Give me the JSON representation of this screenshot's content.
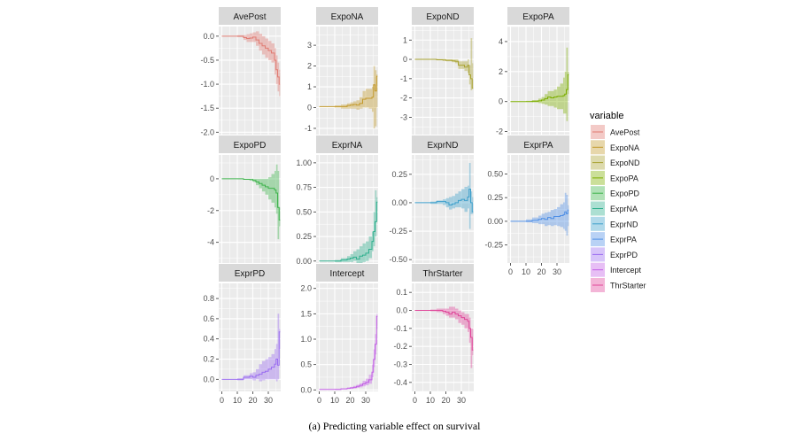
{
  "chart_data": {
    "type": "line",
    "subtype": "faceted step lines with confidence ribbons",
    "caption": "(a) Predicting variable effect on survival",
    "xlabel": "",
    "ylabel": "",
    "x_ticks": [
      0,
      10,
      20,
      30
    ],
    "xlim": [
      -2,
      38
    ],
    "grid": true,
    "legend": {
      "title": "variable",
      "placement": "right",
      "entries": [
        "AvePost",
        "ExpoNA",
        "ExpoND",
        "ExpoPA",
        "ExpoPD",
        "ExprNA",
        "ExprND",
        "ExprPA",
        "ExprPD",
        "Intercept",
        "ThrStarter"
      ]
    },
    "panels": [
      {
        "name": "AvePost",
        "color": "#E07B72",
        "ylim": [
          -2.05,
          0.2
        ],
        "yticks": [
          0.0,
          -0.5,
          -1.0,
          -1.5,
          -2.0
        ],
        "ytick_labels": [
          "0.0",
          "-0.5",
          "-1.0",
          "-1.5",
          "-2.0"
        ],
        "x": [
          0,
          10,
          14,
          16,
          18,
          20,
          22,
          24,
          26,
          28,
          30,
          32,
          34,
          35,
          36,
          37
        ],
        "y": [
          0,
          0,
          -0.03,
          -0.05,
          -0.04,
          -0.02,
          -0.08,
          -0.15,
          -0.2,
          -0.25,
          -0.3,
          -0.35,
          -0.5,
          -0.7,
          -0.85,
          -1.0
        ],
        "lo": [
          0,
          -0.02,
          -0.08,
          -0.12,
          -0.12,
          -0.12,
          -0.2,
          -0.3,
          -0.38,
          -0.45,
          -0.5,
          -0.55,
          -0.8,
          -1.0,
          -1.15,
          -1.25
        ],
        "hi": [
          0,
          0.02,
          0.02,
          0.04,
          0.06,
          0.08,
          0.1,
          0.05,
          0.0,
          -0.05,
          -0.1,
          -0.15,
          -0.25,
          -0.4,
          -0.55,
          -0.7
        ]
      },
      {
        "name": "ExpoNA",
        "color": "#C49A2C",
        "ylim": [
          -1.3,
          3.9
        ],
        "yticks": [
          3,
          2,
          1,
          0,
          -1
        ],
        "ytick_labels": [
          "3",
          "2",
          "1",
          "0",
          "-1"
        ],
        "x": [
          0,
          10,
          14,
          18,
          20,
          22,
          24,
          26,
          28,
          30,
          32,
          34,
          35,
          36,
          37
        ],
        "y": [
          0.05,
          0.05,
          0.05,
          0.1,
          0.12,
          0.15,
          0.12,
          0.2,
          0.4,
          0.45,
          0.45,
          0.5,
          1.1,
          0.8,
          1.5
        ],
        "lo": [
          0.05,
          0.0,
          -0.05,
          -0.05,
          -0.05,
          -0.05,
          -0.1,
          -0.05,
          0.0,
          0.0,
          -0.05,
          -0.2,
          -1.0,
          -0.9,
          0.0
        ],
        "hi": [
          0.05,
          0.1,
          0.15,
          0.2,
          0.25,
          0.3,
          0.35,
          0.5,
          0.8,
          0.9,
          0.9,
          1.0,
          2.0,
          1.8,
          1.6
        ]
      },
      {
        "name": "ExpoND",
        "color": "#A9A332",
        "ylim": [
          -3.9,
          1.7
        ],
        "yticks": [
          1,
          0,
          -1,
          -2,
          -3
        ],
        "ytick_labels": [
          "1",
          "0",
          "-1",
          "-2",
          "-3"
        ],
        "x": [
          0,
          10,
          14,
          18,
          20,
          22,
          24,
          26,
          28,
          30,
          32,
          34,
          35,
          36,
          37
        ],
        "y": [
          0,
          0,
          -0.02,
          -0.03,
          -0.05,
          -0.05,
          -0.08,
          -0.1,
          -0.3,
          -0.3,
          -0.4,
          -0.3,
          -0.8,
          -1.0,
          -1.5
        ],
        "lo": [
          0,
          -0.02,
          -0.05,
          -0.08,
          -0.1,
          -0.1,
          -0.15,
          -0.2,
          -0.5,
          -0.5,
          -0.6,
          -0.7,
          -1.3,
          -1.6,
          -1.5
        ],
        "hi": [
          0,
          0.02,
          0.02,
          0.02,
          0.0,
          0.0,
          0.0,
          0.0,
          -0.1,
          -0.1,
          -0.1,
          0.0,
          -0.3,
          1.1,
          -0.2
        ]
      },
      {
        "name": "ExpoPA",
        "color": "#7CAE00",
        "ylim": [
          -2.2,
          5.0
        ],
        "yticks": [
          4,
          2,
          0,
          -2
        ],
        "ytick_labels": [
          "4",
          "2",
          "0",
          "-2"
        ],
        "x": [
          0,
          10,
          14,
          18,
          20,
          22,
          24,
          26,
          28,
          30,
          32,
          34,
          35,
          36,
          37
        ],
        "y": [
          0,
          0,
          0.02,
          0.05,
          0.1,
          0.2,
          0.3,
          0.25,
          0.3,
          0.35,
          0.35,
          0.4,
          0.5,
          0.8,
          1.8
        ],
        "lo": [
          0,
          -0.02,
          -0.05,
          -0.1,
          -0.15,
          -0.2,
          -0.3,
          -0.3,
          -0.4,
          -0.5,
          -0.5,
          -0.8,
          -0.8,
          -1.3,
          0.5
        ],
        "hi": [
          0,
          0.05,
          0.1,
          0.2,
          0.3,
          0.5,
          0.7,
          0.7,
          0.8,
          1.0,
          1.2,
          1.6,
          2.0,
          3.6,
          2.0
        ]
      },
      {
        "name": "ExpoPD",
        "color": "#3DB34B",
        "ylim": [
          -5.3,
          1.5
        ],
        "yticks": [
          0,
          -2,
          -4
        ],
        "ytick_labels": [
          "0",
          "-2",
          "-4"
        ],
        "x": [
          0,
          10,
          14,
          18,
          20,
          22,
          24,
          26,
          28,
          30,
          32,
          34,
          35,
          36,
          37
        ],
        "y": [
          0,
          0,
          -0.03,
          -0.05,
          -0.1,
          -0.2,
          -0.3,
          -0.4,
          -0.5,
          -0.6,
          -0.6,
          -0.7,
          -0.9,
          -1.8,
          -2.6
        ],
        "lo": [
          0,
          -0.02,
          -0.05,
          -0.1,
          -0.2,
          -0.4,
          -0.6,
          -0.8,
          -1.0,
          -1.3,
          -1.5,
          -1.8,
          -2.2,
          -3.8,
          -3.0
        ],
        "hi": [
          0,
          0.02,
          0.0,
          0.0,
          0.0,
          0.0,
          0.0,
          0.0,
          0.0,
          0.1,
          0.3,
          0.5,
          0.9,
          0.5,
          -1.8
        ]
      },
      {
        "name": "ExprNA",
        "color": "#2FB08E",
        "ylim": [
          -0.02,
          1.08
        ],
        "yticks": [
          1.0,
          0.75,
          0.5,
          0.25,
          0.0
        ],
        "ytick_labels": [
          "1.00",
          "0.75",
          "0.50",
          "0.25",
          "0.00"
        ],
        "x": [
          0,
          10,
          14,
          18,
          20,
          22,
          24,
          26,
          28,
          30,
          32,
          34,
          35,
          36,
          37
        ],
        "y": [
          0,
          0,
          0.01,
          0.02,
          0.03,
          0.04,
          0.02,
          0.05,
          0.06,
          0.08,
          0.12,
          0.2,
          0.3,
          0.4,
          0.6
        ],
        "lo": [
          0,
          -0.01,
          -0.01,
          -0.01,
          -0.01,
          0.0,
          -0.02,
          -0.02,
          -0.01,
          0.0,
          0.03,
          0.1,
          0.15,
          0.25,
          0.4
        ],
        "hi": [
          0,
          0.01,
          0.03,
          0.05,
          0.07,
          0.1,
          0.12,
          0.15,
          0.18,
          0.2,
          0.25,
          0.3,
          0.5,
          0.72,
          0.65
        ]
      },
      {
        "name": "ExprND",
        "color": "#3D9FCB",
        "ylim": [
          -0.53,
          0.42
        ],
        "yticks": [
          0.25,
          0.0,
          -0.25,
          -0.5
        ],
        "ytick_labels": [
          "0.25",
          "0.00",
          "-0.25",
          "-0.50"
        ],
        "x": [
          0,
          10,
          14,
          18,
          20,
          22,
          24,
          26,
          28,
          30,
          32,
          34,
          35,
          36,
          37
        ],
        "y": [
          0,
          0,
          0.01,
          0.01,
          0.0,
          -0.02,
          -0.01,
          0.0,
          0.02,
          0.03,
          0.02,
          0.05,
          0.12,
          0.0,
          -0.08
        ],
        "lo": [
          0,
          -0.01,
          -0.01,
          -0.02,
          -0.04,
          -0.06,
          -0.05,
          -0.04,
          -0.04,
          -0.05,
          -0.08,
          -0.05,
          -0.23,
          -0.1,
          -0.1
        ],
        "hi": [
          0,
          0.01,
          0.02,
          0.03,
          0.04,
          0.05,
          0.06,
          0.08,
          0.1,
          0.12,
          0.14,
          0.15,
          0.35,
          0.1,
          0.05
        ]
      },
      {
        "name": "ExprPA",
        "color": "#4F8FE6",
        "ylim": [
          -0.44,
          0.7
        ],
        "yticks": [
          0.5,
          0.25,
          0.0,
          -0.25
        ],
        "ytick_labels": [
          "0.50",
          "0.25",
          "0.00",
          "-0.25"
        ],
        "x": [
          0,
          10,
          14,
          18,
          20,
          22,
          24,
          26,
          28,
          30,
          32,
          34,
          35,
          36,
          37
        ],
        "y": [
          0,
          0,
          0.01,
          0.02,
          0.03,
          0.02,
          0.04,
          0.03,
          0.05,
          0.05,
          0.06,
          0.07,
          0.1,
          0.08,
          0.12
        ],
        "lo": [
          0,
          -0.01,
          -0.02,
          -0.03,
          -0.03,
          -0.05,
          -0.04,
          -0.05,
          -0.04,
          -0.05,
          -0.06,
          -0.08,
          -0.1,
          -0.15,
          -0.05
        ],
        "hi": [
          0,
          0.02,
          0.04,
          0.06,
          0.08,
          0.09,
          0.1,
          0.12,
          0.13,
          0.15,
          0.18,
          0.2,
          0.3,
          0.28,
          0.17
        ]
      },
      {
        "name": "ExprPD",
        "color": "#9A6CF0",
        "ylim": [
          -0.12,
          0.95
        ],
        "yticks": [
          0.8,
          0.6,
          0.4,
          0.2,
          0.0
        ],
        "ytick_labels": [
          "0.8",
          "0.6",
          "0.4",
          "0.2",
          "0.0"
        ],
        "x": [
          0,
          10,
          14,
          18,
          20,
          22,
          24,
          26,
          28,
          30,
          32,
          34,
          35,
          36,
          37
        ],
        "y": [
          0,
          0,
          0.02,
          0.03,
          0.02,
          0.04,
          0.05,
          0.07,
          0.08,
          0.1,
          0.12,
          0.15,
          0.2,
          0.14,
          0.47
        ],
        "lo": [
          0,
          -0.01,
          0.0,
          0.0,
          -0.01,
          0.0,
          -0.02,
          -0.01,
          0.0,
          0.0,
          0.0,
          0.0,
          -0.02,
          0.0,
          0.3
        ],
        "hi": [
          0,
          0.01,
          0.04,
          0.06,
          0.07,
          0.1,
          0.15,
          0.18,
          0.2,
          0.22,
          0.25,
          0.3,
          0.35,
          0.65,
          0.5
        ]
      },
      {
        "name": "Intercept",
        "color": "#C35FE6",
        "ylim": [
          -0.03,
          2.1
        ],
        "yticks": [
          2.0,
          1.5,
          1.0,
          0.5,
          0.0
        ],
        "ytick_labels": [
          "2.0",
          "1.5",
          "1.0",
          "0.5",
          "0.0"
        ],
        "x": [
          0,
          10,
          14,
          18,
          20,
          22,
          24,
          26,
          28,
          30,
          32,
          34,
          35,
          36,
          37
        ],
        "y": [
          0.01,
          0.01,
          0.02,
          0.03,
          0.04,
          0.05,
          0.07,
          0.09,
          0.12,
          0.15,
          0.2,
          0.35,
          0.6,
          0.9,
          1.45
        ],
        "lo": [
          0.01,
          0.0,
          0.01,
          0.02,
          0.02,
          0.03,
          0.04,
          0.05,
          0.07,
          0.09,
          0.12,
          0.25,
          0.45,
          0.7,
          1.2
        ],
        "hi": [
          0.01,
          0.02,
          0.03,
          0.05,
          0.06,
          0.08,
          0.1,
          0.13,
          0.18,
          0.22,
          0.3,
          0.5,
          0.8,
          1.1,
          1.5
        ]
      },
      {
        "name": "ThrStarter",
        "color": "#E0479A",
        "ylim": [
          -0.45,
          0.15
        ],
        "yticks": [
          0.1,
          0.0,
          -0.1,
          -0.2,
          -0.3,
          -0.4
        ],
        "ytick_labels": [
          "0.1",
          "0.0",
          "-0.1",
          "-0.2",
          "-0.3",
          "-0.4"
        ],
        "x": [
          0,
          10,
          14,
          18,
          20,
          22,
          24,
          26,
          28,
          30,
          32,
          34,
          35,
          36,
          37
        ],
        "y": [
          0,
          0,
          0.0,
          -0.005,
          -0.01,
          -0.02,
          -0.01,
          -0.02,
          -0.03,
          -0.04,
          -0.05,
          -0.06,
          -0.1,
          -0.15,
          -0.22
        ],
        "lo": [
          0,
          -0.005,
          -0.01,
          -0.02,
          -0.03,
          -0.04,
          -0.04,
          -0.05,
          -0.07,
          -0.08,
          -0.1,
          -0.12,
          -0.18,
          -0.32,
          -0.25
        ],
        "hi": [
          0,
          0.005,
          0.01,
          0.01,
          0.01,
          0.02,
          0.02,
          0.01,
          0.0,
          -0.01,
          -0.02,
          -0.02,
          -0.04,
          -0.1,
          -0.1
        ]
      }
    ]
  }
}
